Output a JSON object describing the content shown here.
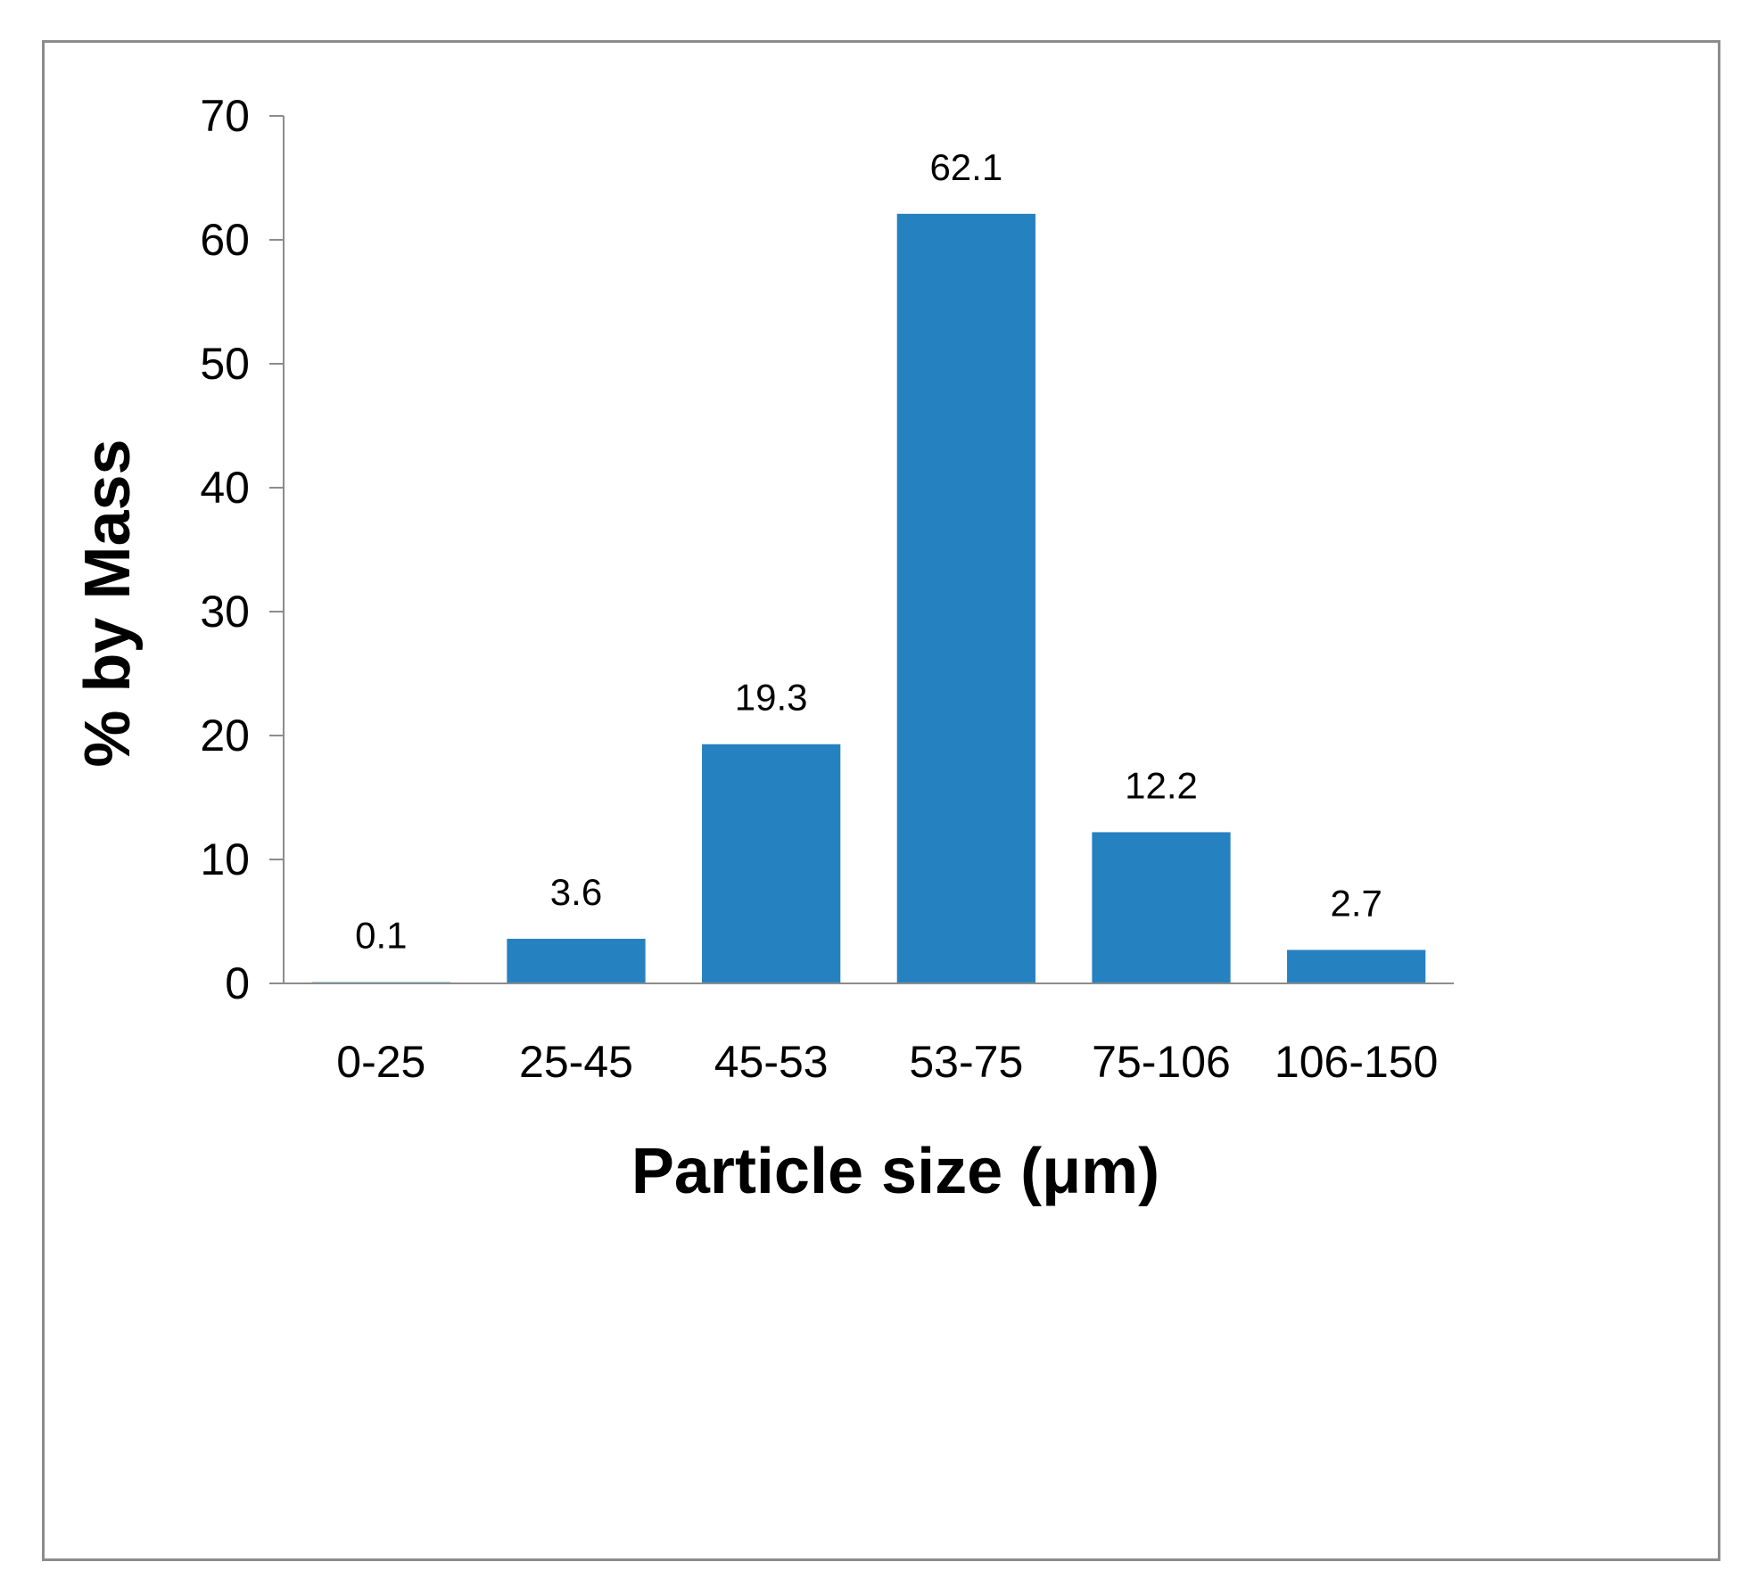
{
  "chart_data": {
    "type": "bar",
    "categories": [
      "0-25",
      "25-45",
      "45-53",
      "53-75",
      "75-106",
      "106-150"
    ],
    "values": [
      0.1,
      3.6,
      19.3,
      62.1,
      12.2,
      2.7
    ],
    "data_labels": [
      "0.1",
      "3.6",
      "19.3",
      "62.1",
      "12.2",
      "2.7"
    ],
    "title": "",
    "xlabel": "Particle size (μm)",
    "ylabel": "% by Mass",
    "ylim": [
      0,
      70
    ],
    "yticks": [
      0,
      10,
      20,
      30,
      40,
      50,
      60,
      70
    ],
    "ytick_labels": [
      "0",
      "10",
      "20",
      "30",
      "40",
      "50",
      "60",
      "70"
    ],
    "bar_color": "#2681C0",
    "grid": false,
    "legend": "none"
  }
}
